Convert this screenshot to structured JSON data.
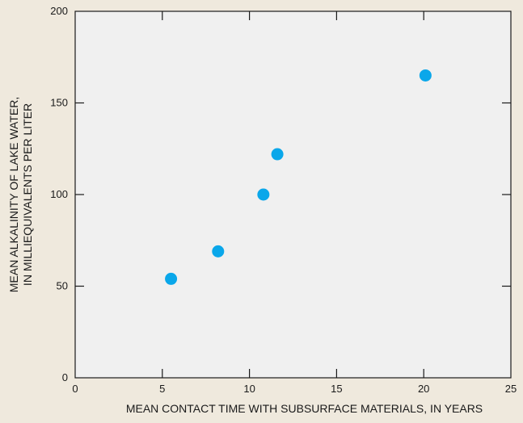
{
  "chart_data": {
    "type": "scatter",
    "xlabel": "MEAN CONTACT TIME WITH SUBSURFACE MATERIALS, IN YEARS",
    "ylabel_lines": [
      "MEAN ALKALINITY OF LAKE WATER,",
      "IN MILLIEQUIVALENTS PER LITER"
    ],
    "xlim": [
      0,
      25
    ],
    "ylim": [
      0,
      200
    ],
    "xticks": [
      0,
      5,
      10,
      15,
      20,
      25
    ],
    "yticks": [
      0,
      50,
      100,
      150,
      200
    ],
    "grid": false,
    "series": [
      {
        "points": [
          {
            "x": 5.5,
            "y": 54
          },
          {
            "x": 8.2,
            "y": 69
          },
          {
            "x": 10.8,
            "y": 100
          },
          {
            "x": 11.6,
            "y": 122
          },
          {
            "x": 20.1,
            "y": 165
          }
        ]
      }
    ],
    "colors": {
      "background": "#efe9dd",
      "plot_area": "#f0f0f0",
      "marker": "#0aa7ea",
      "axis": "#1a1a1a"
    }
  }
}
